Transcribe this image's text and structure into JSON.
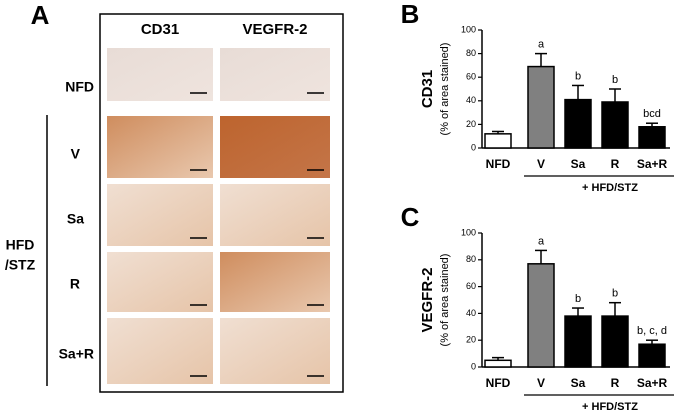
{
  "panel_a": {
    "label": "A",
    "columns": [
      "CD31",
      "VEGFR-2"
    ],
    "rows": [
      "NFD",
      "V",
      "Sa",
      "R",
      "Sa+R"
    ],
    "group_label": [
      "HFD",
      "/STZ"
    ]
  },
  "chart_data": [
    {
      "type": "bar",
      "panel": "B",
      "y_label": "CD31",
      "y_sublabel": "(% of area stained)",
      "categories": [
        "NFD",
        "V",
        "Sa",
        "R",
        "Sa+R"
      ],
      "values": [
        12,
        69,
        41,
        39,
        18
      ],
      "errors": [
        2,
        11,
        12,
        11,
        3
      ],
      "colors": [
        "#ffffff",
        "#808080",
        "#000000",
        "#000000",
        "#000000"
      ],
      "annotations": [
        null,
        "a",
        "b",
        "b",
        "bcd"
      ],
      "group_label": "+ HFD/STZ",
      "ylim": [
        0,
        100
      ],
      "yticks": [
        0,
        20,
        40,
        60,
        80,
        100
      ]
    },
    {
      "type": "bar",
      "panel": "C",
      "y_label": "VEGFR-2",
      "y_sublabel": "(% of area stained)",
      "categories": [
        "NFD",
        "V",
        "Sa",
        "R",
        "Sa+R"
      ],
      "values": [
        5,
        77,
        38,
        38,
        17
      ],
      "errors": [
        2,
        10,
        6,
        10,
        3
      ],
      "colors": [
        "#ffffff",
        "#808080",
        "#000000",
        "#000000",
        "#000000"
      ],
      "annotations": [
        null,
        "a",
        "b",
        "b",
        "b, c, d"
      ],
      "group_label": "+ HFD/STZ",
      "ylim": [
        0,
        100
      ],
      "yticks": [
        0,
        20,
        40,
        60,
        80,
        100
      ]
    }
  ]
}
